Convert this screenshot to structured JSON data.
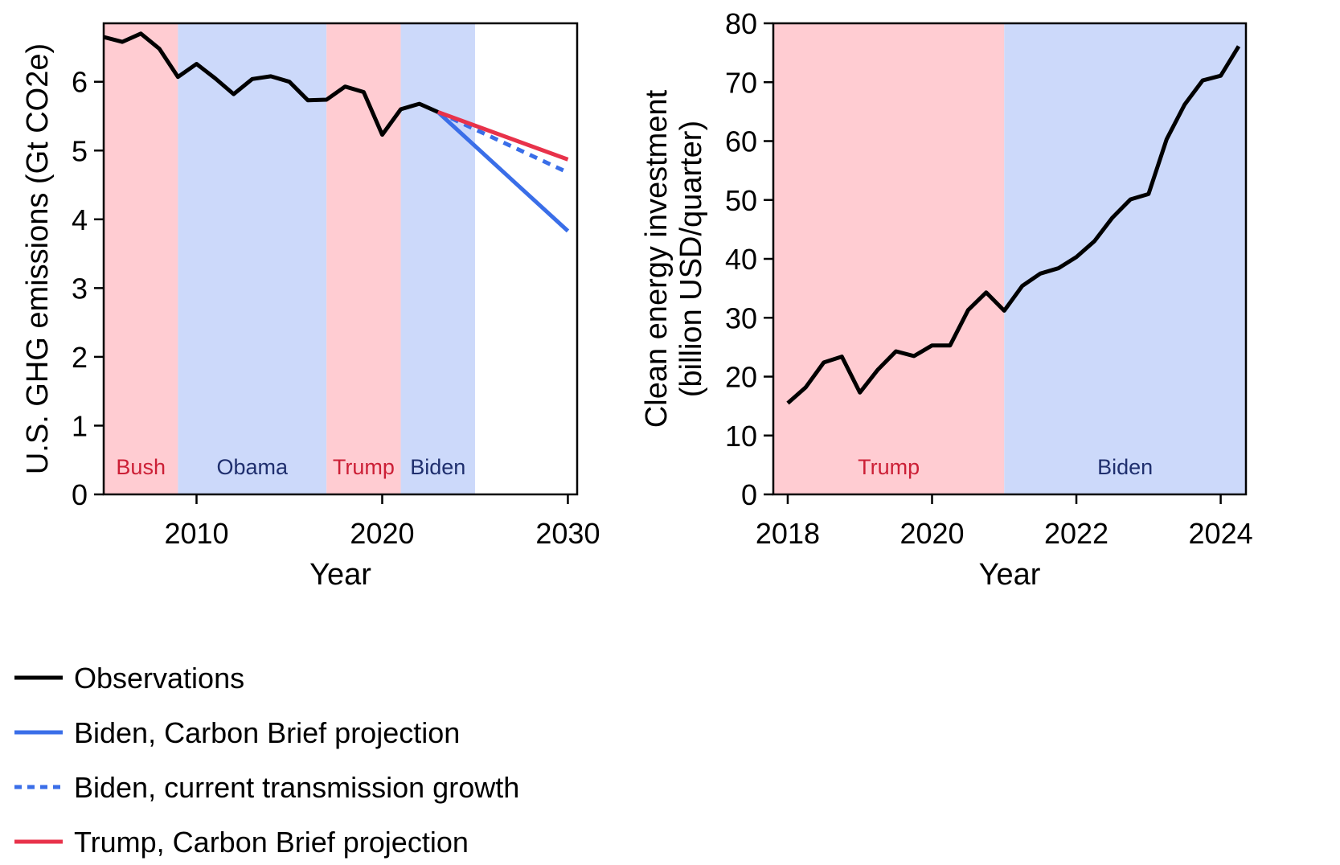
{
  "colors": {
    "observations": "#000000",
    "biden_line": "#3a6ee8",
    "trump_line": "#e8324a",
    "red_band": "#ffccd2",
    "blue_band": "#ccd9fa",
    "red_text": "#cc1f36",
    "blue_text": "#1f2f6e"
  },
  "chart_data": [
    {
      "type": "line",
      "xlabel": "Year",
      "ylabel": "U.S. GHG emissions (Gt CO2e)",
      "xlim": [
        2005,
        2030.5
      ],
      "ylim": [
        0,
        6.85
      ],
      "xticks": [
        2010,
        2020,
        2030
      ],
      "yticks": [
        0,
        1,
        2,
        3,
        4,
        5,
        6
      ],
      "eras": [
        {
          "label": "Bush",
          "start": 2005,
          "end": 2009,
          "party": "red"
        },
        {
          "label": "Obama",
          "start": 2009,
          "end": 2017,
          "party": "blue"
        },
        {
          "label": "Trump",
          "start": 2017,
          "end": 2021,
          "party": "red"
        },
        {
          "label": "Biden",
          "start": 2021,
          "end": 2025,
          "party": "blue"
        }
      ],
      "series": [
        {
          "name": "Observations",
          "style": "solid",
          "color_key": "observations",
          "x": [
            2005,
            2006,
            2007,
            2008,
            2009,
            2010,
            2011,
            2012,
            2013,
            2014,
            2015,
            2016,
            2017,
            2018,
            2019,
            2020,
            2021,
            2022,
            2023
          ],
          "y": [
            6.65,
            6.58,
            6.7,
            6.48,
            6.07,
            6.26,
            6.05,
            5.82,
            6.04,
            6.08,
            6.0,
            5.73,
            5.74,
            5.93,
            5.85,
            5.23,
            5.6,
            5.68,
            5.56
          ]
        },
        {
          "name": "Biden, Carbon Brief projection",
          "style": "solid",
          "color_key": "biden_line",
          "x": [
            2023,
            2030
          ],
          "y": [
            5.56,
            3.83
          ]
        },
        {
          "name": "Biden, current transmission growth",
          "style": "dashed",
          "color_key": "biden_line",
          "x": [
            2023,
            2030
          ],
          "y": [
            5.56,
            4.68
          ]
        },
        {
          "name": "Trump, Carbon Brief projection",
          "style": "solid",
          "color_key": "trump_line",
          "x": [
            2023,
            2030
          ],
          "y": [
            5.56,
            4.87
          ]
        }
      ]
    },
    {
      "type": "line",
      "xlabel": "Year",
      "ylabel": "Clean energy investment (billion USD/quarter)",
      "ylabel_lines": [
        "Clean energy investment",
        "(billion USD/quarter)"
      ],
      "xlim": [
        2017.8,
        2024.35
      ],
      "ylim": [
        0,
        80
      ],
      "xticks": [
        2018,
        2020,
        2022,
        2024
      ],
      "yticks": [
        0,
        10,
        20,
        30,
        40,
        50,
        60,
        70,
        80
      ],
      "eras": [
        {
          "label": "Trump",
          "start": 2017.8,
          "end": 2021,
          "party": "red"
        },
        {
          "label": "Biden",
          "start": 2021,
          "end": 2024.35,
          "party": "blue"
        }
      ],
      "series": [
        {
          "name": "Observations",
          "style": "solid",
          "color_key": "observations",
          "x": [
            2018.0,
            2018.25,
            2018.5,
            2018.75,
            2019.0,
            2019.25,
            2019.5,
            2019.75,
            2020.0,
            2020.25,
            2020.5,
            2020.75,
            2021.0,
            2021.25,
            2021.5,
            2021.75,
            2022.0,
            2022.25,
            2022.5,
            2022.75,
            2023.0,
            2023.25,
            2023.5,
            2023.75,
            2024.0,
            2024.25
          ],
          "y": [
            15.5,
            18.2,
            22.4,
            23.4,
            17.3,
            21.2,
            24.3,
            23.5,
            25.3,
            25.3,
            31.3,
            34.3,
            31.2,
            35.4,
            37.5,
            38.4,
            40.3,
            43.0,
            47.0,
            50.1,
            51.0,
            60.3,
            66.2,
            70.3,
            71.1,
            76.1
          ]
        }
      ]
    }
  ],
  "legend": [
    {
      "label": "Observations",
      "color_key": "observations",
      "style": "solid"
    },
    {
      "label": "Biden, Carbon Brief projection",
      "color_key": "biden_line",
      "style": "solid"
    },
    {
      "label": "Biden, current transmission growth",
      "color_key": "biden_line",
      "style": "dashed"
    },
    {
      "label": "Trump, Carbon Brief projection",
      "color_key": "trump_line",
      "style": "solid"
    }
  ]
}
